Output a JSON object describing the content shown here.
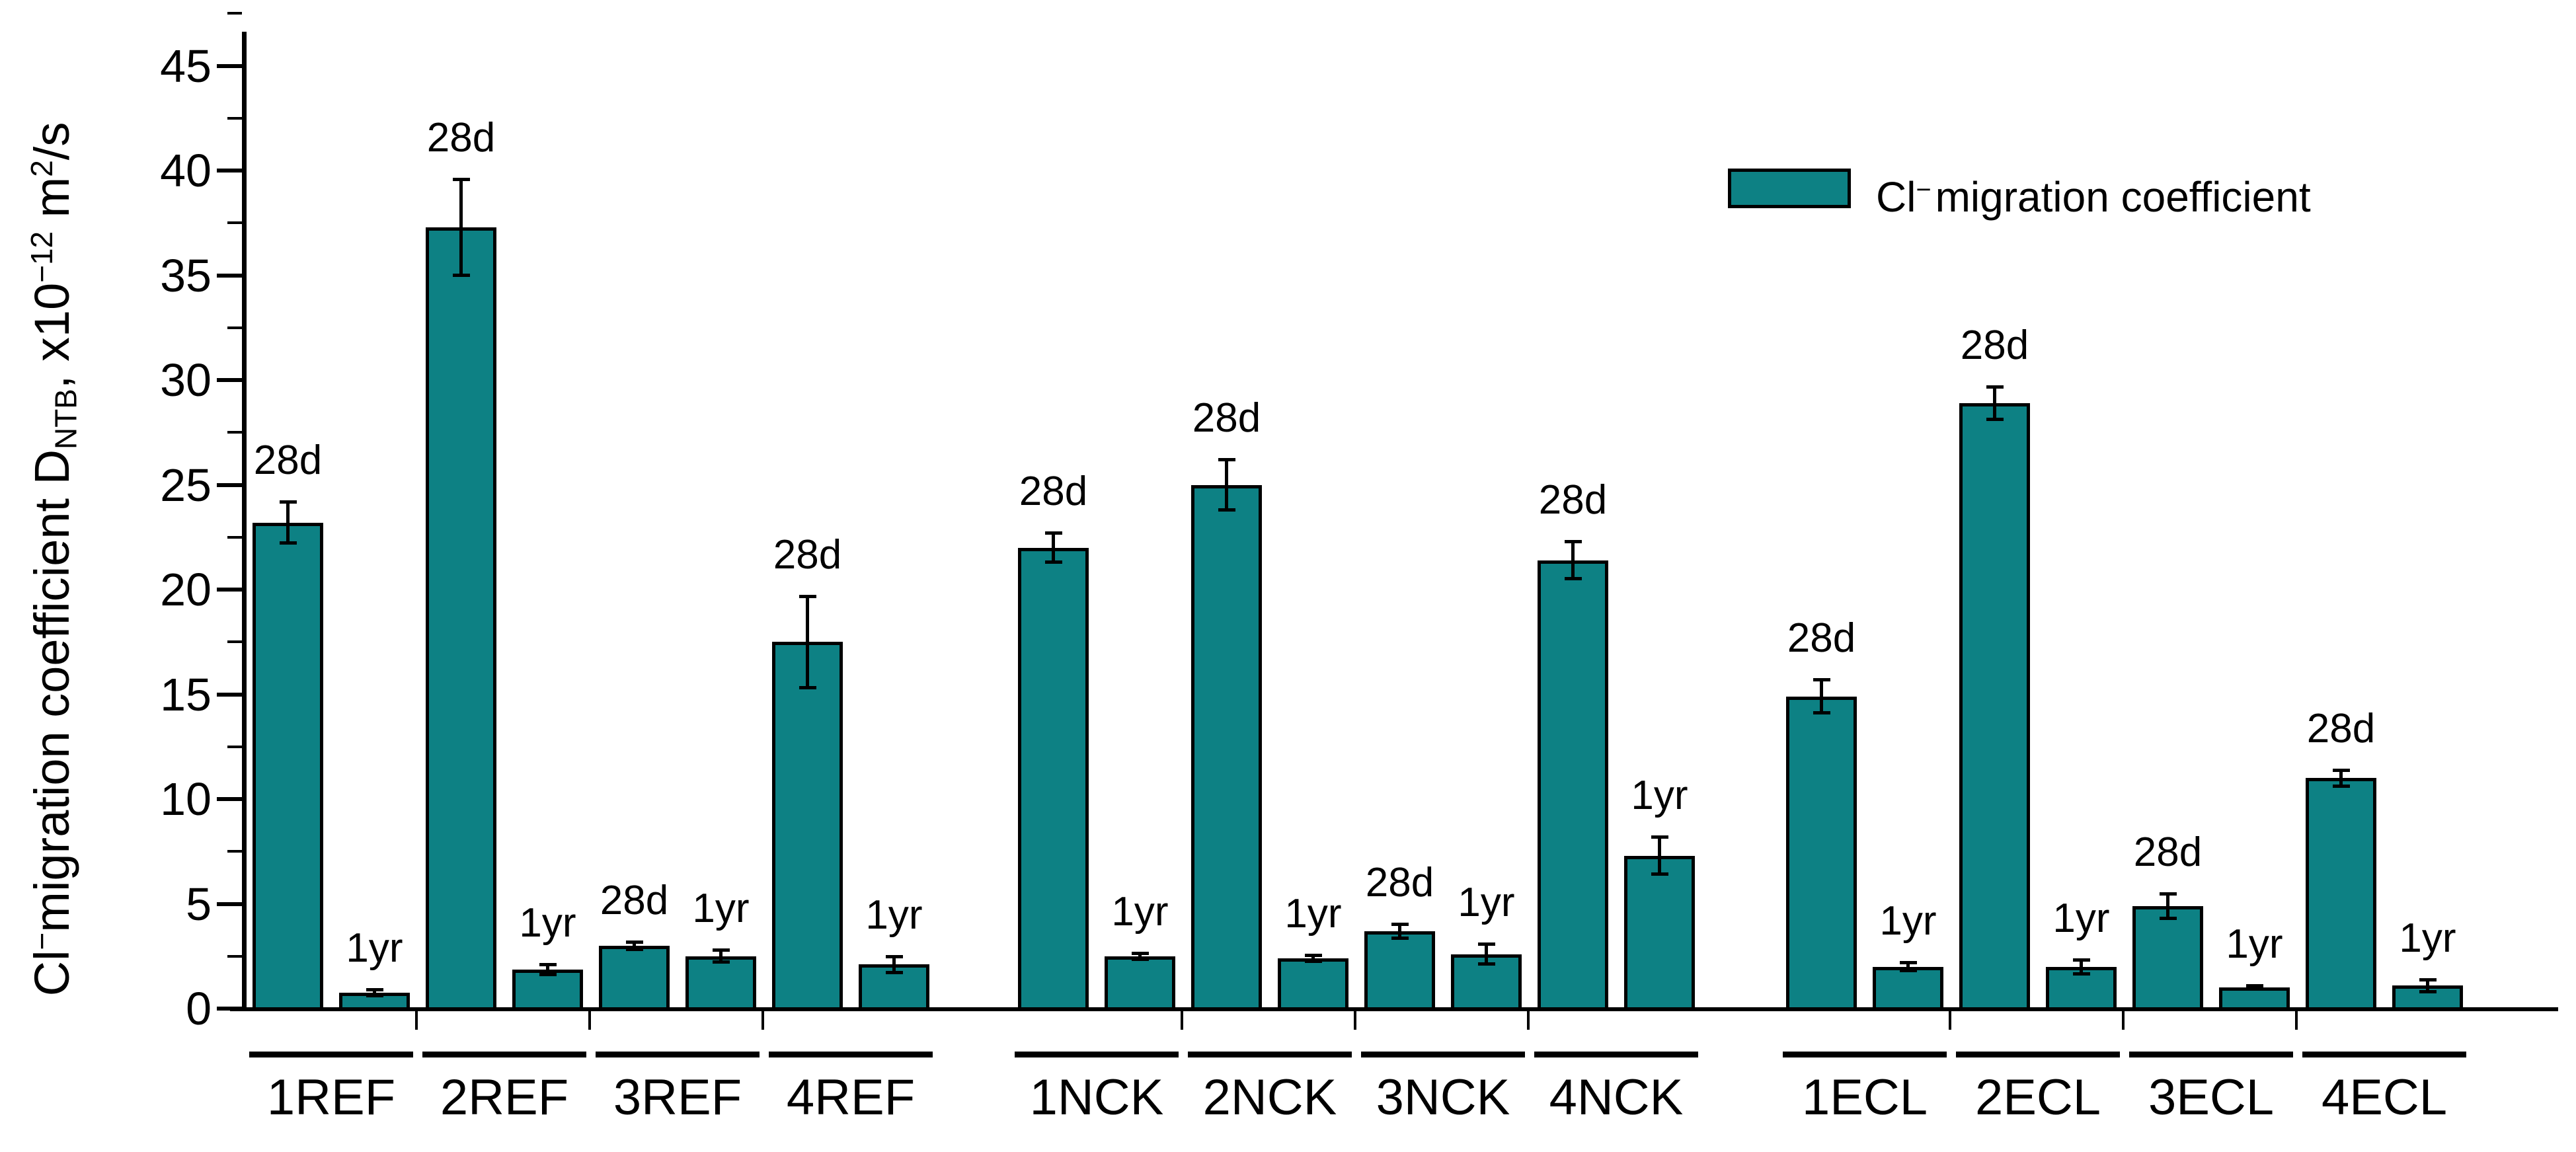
{
  "chart_data": {
    "type": "bar",
    "title": "",
    "ylabel": {
      "pre": "Cl",
      "sup": "−",
      "main": "migration coefficient D",
      "sub": "NTB",
      "x10": ", x10",
      "exp": "−12",
      "unit": " m",
      "unit_exp": "2",
      "unit_end": "/s"
    },
    "ylim": [
      0,
      45
    ],
    "y_major_step": 5,
    "y_minor_step": 2.5,
    "y_ticks": [
      "0",
      "5",
      "10",
      "15",
      "20",
      "25",
      "30",
      "35",
      "40",
      "45"
    ],
    "grid": false,
    "legend": {
      "pre": "Cl",
      "sup": "−",
      "rest": "migration coefficient",
      "position": "top-right"
    },
    "bar_color": "#0d8184",
    "bar_border": "#000000",
    "bar_age_labels": [
      "28d",
      "1yr"
    ],
    "groups": [
      {
        "label": "1REF",
        "bars": [
          {
            "age": "28d",
            "value": 23.2,
            "err": 1.0
          },
          {
            "age": "1yr",
            "value": 0.75,
            "err": 0.15
          }
        ]
      },
      {
        "label": "2REF",
        "bars": [
          {
            "age": "28d",
            "value": 37.3,
            "err": 2.3
          },
          {
            "age": "1yr",
            "value": 1.85,
            "err": 0.25
          }
        ]
      },
      {
        "label": "3REF",
        "bars": [
          {
            "age": "28d",
            "value": 3.0,
            "err": 0.2
          },
          {
            "age": "1yr",
            "value": 2.5,
            "err": 0.3
          }
        ]
      },
      {
        "label": "4REF",
        "bars": [
          {
            "age": "28d",
            "value": 17.5,
            "err": 2.2
          },
          {
            "age": "1yr",
            "value": 2.1,
            "err": 0.4
          }
        ]
      },
      {
        "label": "1NCK",
        "bars": [
          {
            "age": "28d",
            "value": 22.0,
            "err": 0.7
          },
          {
            "age": "1yr",
            "value": 2.5,
            "err": 0.15
          }
        ]
      },
      {
        "label": "2NCK",
        "bars": [
          {
            "age": "28d",
            "value": 25.0,
            "err": 1.2
          },
          {
            "age": "1yr",
            "value": 2.4,
            "err": 0.15
          }
        ]
      },
      {
        "label": "3NCK",
        "bars": [
          {
            "age": "28d",
            "value": 3.7,
            "err": 0.35
          },
          {
            "age": "1yr",
            "value": 2.6,
            "err": 0.5
          }
        ]
      },
      {
        "label": "4NCK",
        "bars": [
          {
            "age": "28d",
            "value": 21.4,
            "err": 0.9
          },
          {
            "age": "1yr",
            "value": 7.3,
            "err": 0.9
          }
        ]
      },
      {
        "label": "1ECL",
        "bars": [
          {
            "age": "28d",
            "value": 14.9,
            "err": 0.8
          },
          {
            "age": "1yr",
            "value": 2.0,
            "err": 0.2
          }
        ]
      },
      {
        "label": "2ECL",
        "bars": [
          {
            "age": "28d",
            "value": 28.9,
            "err": 0.8
          },
          {
            "age": "1yr",
            "value": 2.0,
            "err": 0.35
          }
        ]
      },
      {
        "label": "3ECL",
        "bars": [
          {
            "age": "28d",
            "value": 4.9,
            "err": 0.6
          },
          {
            "age": "1yr",
            "value": 1.0,
            "err": 0.1
          }
        ]
      },
      {
        "label": "4ECL",
        "bars": [
          {
            "age": "28d",
            "value": 11.0,
            "err": 0.4
          },
          {
            "age": "1yr",
            "value": 1.1,
            "err": 0.3
          }
        ]
      }
    ]
  }
}
